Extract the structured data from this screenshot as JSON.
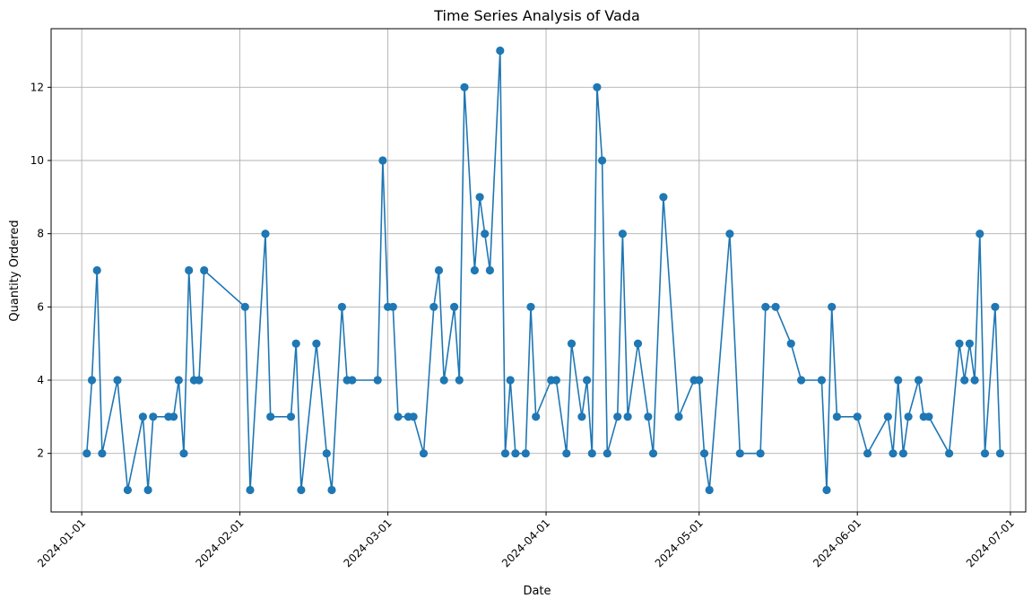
{
  "chart_data": {
    "type": "line",
    "title": "Time Series Analysis of Vada",
    "xlabel": "Date",
    "ylabel": "Quantity Ordered",
    "xlim": [
      "2023-12-26",
      "2024-07-04"
    ],
    "ylim": [
      0.4,
      13.6
    ],
    "x_ticks": [
      "2024-01-01",
      "2024-02-01",
      "2024-03-01",
      "2024-04-01",
      "2024-05-01",
      "2024-06-01",
      "2024-07-01"
    ],
    "y_ticks": [
      2,
      4,
      6,
      8,
      10,
      12
    ],
    "grid": true,
    "marker": "circle",
    "line_color": "#1f77b4",
    "series": [
      {
        "points": [
          [
            "2024-01-02",
            2
          ],
          [
            "2024-01-03",
            4
          ],
          [
            "2024-01-04",
            7
          ],
          [
            "2024-01-05",
            2
          ],
          [
            "2024-01-08",
            4
          ],
          [
            "2024-01-10",
            1
          ],
          [
            "2024-01-13",
            3
          ],
          [
            "2024-01-14",
            1
          ],
          [
            "2024-01-15",
            3
          ],
          [
            "2024-01-18",
            3
          ],
          [
            "2024-01-19",
            3
          ],
          [
            "2024-01-20",
            4
          ],
          [
            "2024-01-21",
            2
          ],
          [
            "2024-01-22",
            7
          ],
          [
            "2024-01-23",
            4
          ],
          [
            "2024-01-24",
            4
          ],
          [
            "2024-01-25",
            7
          ],
          [
            "2024-02-02",
            6
          ],
          [
            "2024-02-03",
            1
          ],
          [
            "2024-02-06",
            8
          ],
          [
            "2024-02-07",
            3
          ],
          [
            "2024-02-11",
            3
          ],
          [
            "2024-02-12",
            5
          ],
          [
            "2024-02-13",
            1
          ],
          [
            "2024-02-16",
            5
          ],
          [
            "2024-02-18",
            2
          ],
          [
            "2024-02-19",
            1
          ],
          [
            "2024-02-21",
            6
          ],
          [
            "2024-02-22",
            4
          ],
          [
            "2024-02-23",
            4
          ],
          [
            "2024-02-28",
            4
          ],
          [
            "2024-02-29",
            10
          ],
          [
            "2024-03-01",
            6
          ],
          [
            "2024-03-02",
            6
          ],
          [
            "2024-03-03",
            3
          ],
          [
            "2024-03-05",
            3
          ],
          [
            "2024-03-06",
            3
          ],
          [
            "2024-03-08",
            2
          ],
          [
            "2024-03-10",
            6
          ],
          [
            "2024-03-11",
            7
          ],
          [
            "2024-03-12",
            4
          ],
          [
            "2024-03-14",
            6
          ],
          [
            "2024-03-15",
            4
          ],
          [
            "2024-03-16",
            12
          ],
          [
            "2024-03-18",
            7
          ],
          [
            "2024-03-19",
            9
          ],
          [
            "2024-03-20",
            8
          ],
          [
            "2024-03-21",
            7
          ],
          [
            "2024-03-23",
            13
          ],
          [
            "2024-03-24",
            2
          ],
          [
            "2024-03-25",
            4
          ],
          [
            "2024-03-26",
            2
          ],
          [
            "2024-03-28",
            2
          ],
          [
            "2024-03-29",
            6
          ],
          [
            "2024-03-30",
            3
          ],
          [
            "2024-04-02",
            4
          ],
          [
            "2024-04-03",
            4
          ],
          [
            "2024-04-05",
            2
          ],
          [
            "2024-04-06",
            5
          ],
          [
            "2024-04-08",
            3
          ],
          [
            "2024-04-09",
            4
          ],
          [
            "2024-04-10",
            2
          ],
          [
            "2024-04-11",
            12
          ],
          [
            "2024-04-12",
            10
          ],
          [
            "2024-04-13",
            2
          ],
          [
            "2024-04-15",
            3
          ],
          [
            "2024-04-16",
            8
          ],
          [
            "2024-04-17",
            3
          ],
          [
            "2024-04-19",
            5
          ],
          [
            "2024-04-21",
            3
          ],
          [
            "2024-04-22",
            2
          ],
          [
            "2024-04-24",
            9
          ],
          [
            "2024-04-27",
            3
          ],
          [
            "2024-04-30",
            4
          ],
          [
            "2024-05-01",
            4
          ],
          [
            "2024-05-02",
            2
          ],
          [
            "2024-05-03",
            1
          ],
          [
            "2024-05-07",
            8
          ],
          [
            "2024-05-09",
            2
          ],
          [
            "2024-05-13",
            2
          ],
          [
            "2024-05-14",
            6
          ],
          [
            "2024-05-16",
            6
          ],
          [
            "2024-05-19",
            5
          ],
          [
            "2024-05-21",
            4
          ],
          [
            "2024-05-25",
            4
          ],
          [
            "2024-05-26",
            1
          ],
          [
            "2024-05-27",
            6
          ],
          [
            "2024-05-28",
            3
          ],
          [
            "2024-06-01",
            3
          ],
          [
            "2024-06-03",
            2
          ],
          [
            "2024-06-07",
            3
          ],
          [
            "2024-06-08",
            2
          ],
          [
            "2024-06-09",
            4
          ],
          [
            "2024-06-10",
            2
          ],
          [
            "2024-06-11",
            3
          ],
          [
            "2024-06-13",
            4
          ],
          [
            "2024-06-14",
            3
          ],
          [
            "2024-06-15",
            3
          ],
          [
            "2024-06-19",
            2
          ],
          [
            "2024-06-21",
            5
          ],
          [
            "2024-06-22",
            4
          ],
          [
            "2024-06-23",
            5
          ],
          [
            "2024-06-24",
            4
          ],
          [
            "2024-06-25",
            8
          ],
          [
            "2024-06-26",
            2
          ],
          [
            "2024-06-28",
            6
          ],
          [
            "2024-06-29",
            2
          ]
        ]
      }
    ]
  }
}
